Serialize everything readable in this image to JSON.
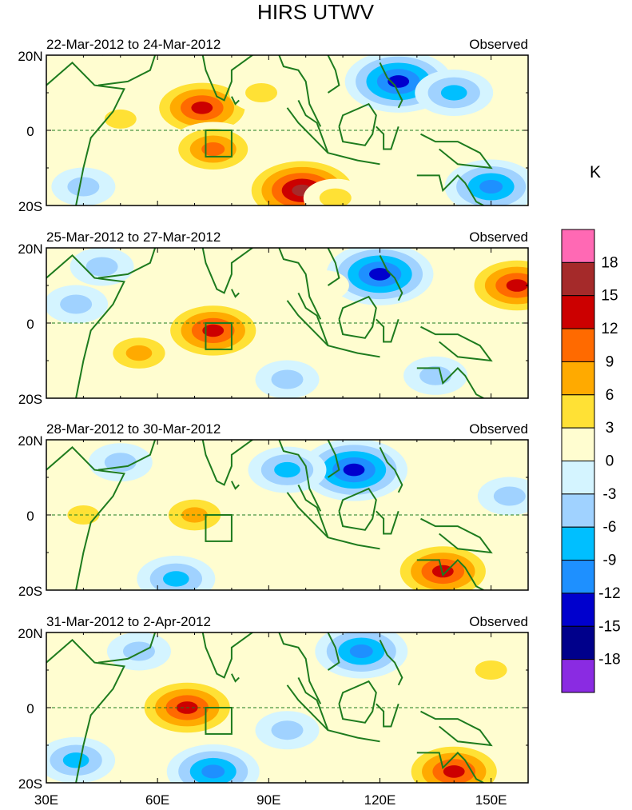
{
  "chart_data": {
    "type": "heatmap",
    "title": "HIRS UTWV",
    "units_label": "K",
    "x_ticks": [
      30,
      60,
      90,
      120,
      150
    ],
    "x_tick_labels": [
      "30E",
      "60E",
      "90E",
      "120E",
      "150E"
    ],
    "y_ticks": [
      20,
      0,
      -20
    ],
    "y_tick_labels": [
      "20N",
      "0",
      "20S"
    ],
    "xlim": [
      30,
      160
    ],
    "ylim": [
      -20,
      20
    ],
    "colorbar": {
      "levels": [
        -18,
        -15,
        -12,
        -9,
        -6,
        -3,
        0,
        3,
        6,
        9,
        12,
        15,
        18
      ],
      "colors": [
        "#8a2be2",
        "#00008b",
        "#0000cd",
        "#1e90ff",
        "#00bfff",
        "#a0d2ff",
        "#d4f4ff",
        "#fffdd0",
        "#ffe135",
        "#ffaa00",
        "#ff6a00",
        "#cc0000",
        "#a52a2a",
        "#ff69b4"
      ]
    },
    "box_region": {
      "lon": [
        73,
        80
      ],
      "lat": [
        -7,
        0
      ]
    },
    "panels": [
      {
        "date_range": "22-Mar-2012 to 24-Mar-2012",
        "label": "Observed",
        "anomalies": [
          {
            "lon": 72,
            "lat": 6,
            "value": 13
          },
          {
            "lon": 75,
            "lat": -5,
            "value": 11
          },
          {
            "lon": 99,
            "lat": -16,
            "value": 16
          },
          {
            "lon": 50,
            "lat": 3,
            "value": 5
          },
          {
            "lon": 88,
            "lat": 10,
            "value": 4
          },
          {
            "lon": 125,
            "lat": 13,
            "value": -14
          },
          {
            "lon": 140,
            "lat": 10,
            "value": -9
          },
          {
            "lon": 150,
            "lat": -15,
            "value": -10
          },
          {
            "lon": 40,
            "lat": -15,
            "value": -5
          },
          {
            "lon": 108,
            "lat": -18,
            "value": 6
          }
        ]
      },
      {
        "date_range": "25-Mar-2012 to 27-Mar-2012",
        "label": "Observed",
        "anomalies": [
          {
            "lon": 75,
            "lat": -2,
            "value": 13
          },
          {
            "lon": 157,
            "lat": 10,
            "value": 13
          },
          {
            "lon": 120,
            "lat": 13,
            "value": -13
          },
          {
            "lon": 55,
            "lat": -8,
            "value": 7
          },
          {
            "lon": 38,
            "lat": 5,
            "value": -5
          },
          {
            "lon": 95,
            "lat": -15,
            "value": -6
          },
          {
            "lon": 105,
            "lat": 10,
            "value": 3
          },
          {
            "lon": 135,
            "lat": -14,
            "value": -4
          },
          {
            "lon": 45,
            "lat": 15,
            "value": -4
          }
        ]
      },
      {
        "date_range": "28-Mar-2012 to 30-Mar-2012",
        "label": "Observed",
        "anomalies": [
          {
            "lon": 70,
            "lat": 0,
            "value": 8
          },
          {
            "lon": 137,
            "lat": -15,
            "value": 14
          },
          {
            "lon": 113,
            "lat": 12,
            "value": -15
          },
          {
            "lon": 95,
            "lat": 12,
            "value": -7
          },
          {
            "lon": 65,
            "lat": -17,
            "value": -8
          },
          {
            "lon": 50,
            "lat": 14,
            "value": -5
          },
          {
            "lon": 40,
            "lat": 0,
            "value": 5
          },
          {
            "lon": 155,
            "lat": 5,
            "value": -4
          }
        ]
      },
      {
        "date_range": "31-Mar-2012 to 2-Apr-2012",
        "label": "Observed",
        "anomalies": [
          {
            "lon": 68,
            "lat": 0,
            "value": 13
          },
          {
            "lon": 140,
            "lat": -17,
            "value": 13
          },
          {
            "lon": 115,
            "lat": 15,
            "value": -10
          },
          {
            "lon": 38,
            "lat": -14,
            "value": -9
          },
          {
            "lon": 75,
            "lat": -17,
            "value": -10
          },
          {
            "lon": 150,
            "lat": 10,
            "value": 4
          },
          {
            "lon": 95,
            "lat": -6,
            "value": -4
          },
          {
            "lon": 55,
            "lat": 15,
            "value": -5
          }
        ]
      }
    ]
  }
}
